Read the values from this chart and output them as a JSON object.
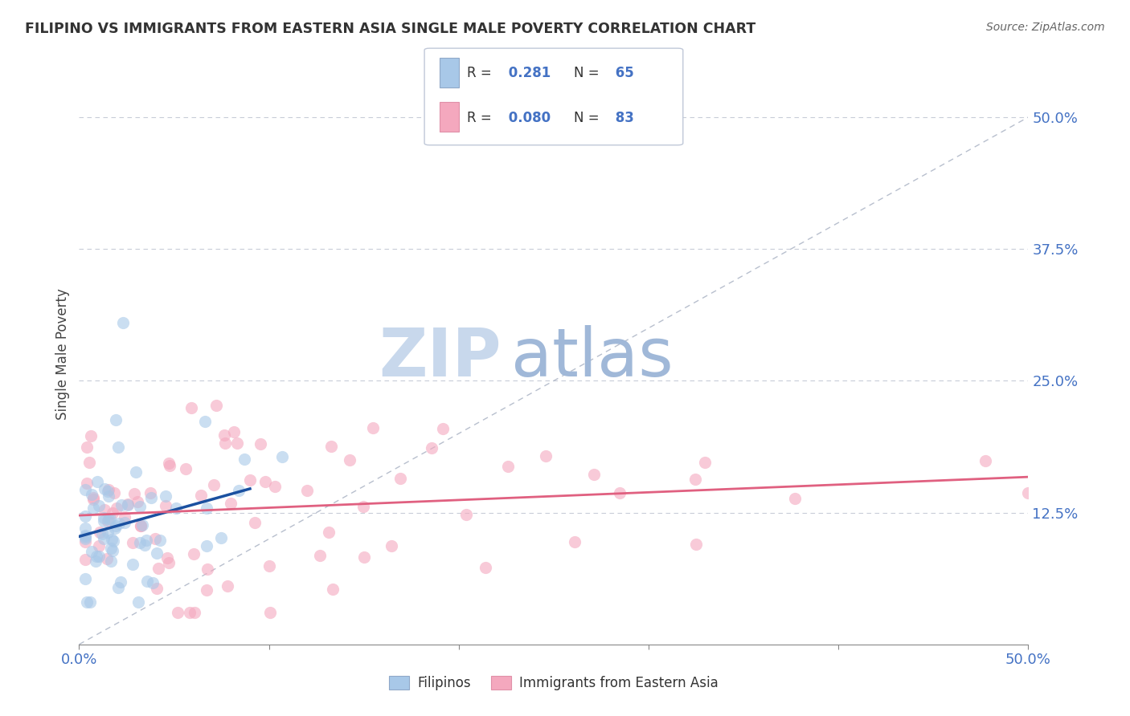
{
  "title": "FILIPINO VS IMMIGRANTS FROM EASTERN ASIA SINGLE MALE POVERTY CORRELATION CHART",
  "source": "Source: ZipAtlas.com",
  "ylabel": "Single Male Poverty",
  "ytick_labels": [
    "12.5%",
    "25.0%",
    "37.5%",
    "50.0%"
  ],
  "ytick_values": [
    0.125,
    0.25,
    0.375,
    0.5
  ],
  "xlim": [
    0.0,
    0.5
  ],
  "ylim": [
    0.0,
    0.55
  ],
  "legend_labels": [
    "Filipinos",
    "Immigrants from Eastern Asia"
  ],
  "R_filipino": 0.281,
  "N_filipino": 65,
  "R_eastern": 0.08,
  "N_eastern": 83,
  "color_filipino": "#a8c8e8",
  "color_eastern": "#f4a8be",
  "color_line_filipino": "#1a50a0",
  "color_line_eastern": "#e06080",
  "watermark_ZIP_color": "#c8d8ec",
  "watermark_atlas_color": "#a0b8d8",
  "background_color": "#ffffff",
  "title_color": "#333333",
  "source_color": "#666666",
  "axis_label_color": "#4472c4",
  "scatter_alpha": 0.6,
  "scatter_size": 120
}
